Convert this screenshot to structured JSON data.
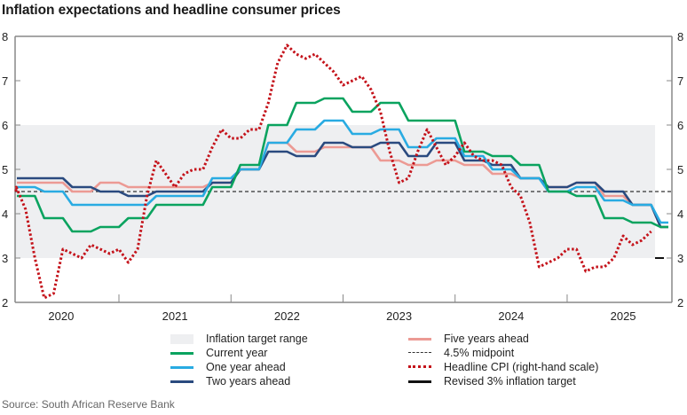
{
  "title": "Inflation expectations and headline consumer prices",
  "source": "Source: South African Reserve Bank",
  "colors": {
    "target_range": "#eeeff1",
    "current_year": "#0aa35f",
    "one_year": "#29abe2",
    "two_years": "#2a4a7f",
    "five_years": "#ec9a94",
    "midpoint": "#333333",
    "cpi": "#c4121a",
    "revised_target": "#111111",
    "axis": "#888888"
  },
  "legend": [
    {
      "key": "target_range",
      "label": "Inflation target range"
    },
    {
      "key": "current_year",
      "label": "Current year"
    },
    {
      "key": "one_year",
      "label": "One year ahead"
    },
    {
      "key": "two_years",
      "label": "Two years ahead"
    },
    {
      "key": "five_years",
      "label": "Five years ahead"
    },
    {
      "key": "midpoint",
      "label": "4.5% midpoint"
    },
    {
      "key": "cpi",
      "label": "Headline CPI (right-hand scale)"
    },
    {
      "key": "revised_target",
      "label": "Revised 3% inflation target"
    }
  ],
  "chart_data": {
    "type": "line",
    "title": "Inflation expectations and headline consumer prices",
    "xlabel": "",
    "ylabel": "",
    "x_ticks": [
      "2020",
      "2021",
      "2022",
      "2023",
      "2024",
      "2025"
    ],
    "y_left": {
      "min": 2,
      "max": 8,
      "ticks": [
        2,
        3,
        4,
        5,
        6,
        7,
        8
      ]
    },
    "y_right": {
      "min": 2,
      "max": 8,
      "ticks": [
        2,
        3,
        4,
        5,
        6,
        7,
        8
      ]
    },
    "target_range": [
      3,
      6
    ],
    "midpoint": 4.5,
    "revised_target": 3,
    "survey_quarters": [
      "2020-Feb",
      "2020-May",
      "2020-Aug",
      "2020-Nov",
      "2021-Feb",
      "2021-May",
      "2021-Aug",
      "2021-Nov",
      "2022-Feb",
      "2022-May",
      "2022-Aug",
      "2022-Nov",
      "2023-Feb",
      "2023-May",
      "2023-Aug",
      "2023-Nov",
      "2024-Feb",
      "2024-May",
      "2024-Aug",
      "2024-Nov",
      "2025-Feb",
      "2025-May",
      "2025-Aug",
      "2025-Nov"
    ],
    "series": [
      {
        "name": "Current year",
        "key": "current_year",
        "axis": "left",
        "values": [
          4.4,
          3.9,
          3.6,
          3.7,
          3.9,
          4.2,
          4.2,
          4.6,
          5.1,
          6.0,
          6.5,
          6.6,
          6.3,
          6.5,
          6.1,
          6.1,
          5.4,
          5.3,
          5.1,
          4.5,
          4.4,
          3.9,
          3.8,
          3.7
        ]
      },
      {
        "name": "One year ahead",
        "key": "one_year",
        "axis": "left",
        "values": [
          4.6,
          4.5,
          4.2,
          4.2,
          4.2,
          4.4,
          4.4,
          4.8,
          5.0,
          5.6,
          5.9,
          6.1,
          5.8,
          5.9,
          5.5,
          5.7,
          5.3,
          5.0,
          4.8,
          4.5,
          4.6,
          4.3,
          4.2,
          3.8
        ]
      },
      {
        "name": "Two years ahead",
        "key": "two_years",
        "axis": "left",
        "values": [
          4.8,
          4.8,
          4.6,
          4.5,
          4.4,
          4.5,
          4.5,
          4.7,
          5.0,
          5.4,
          5.3,
          5.6,
          5.5,
          5.6,
          5.3,
          5.6,
          5.2,
          5.1,
          4.8,
          4.6,
          4.7,
          4.5,
          4.2,
          3.7
        ]
      },
      {
        "name": "Five years ahead",
        "key": "five_years",
        "axis": "left",
        "values": [
          4.7,
          4.7,
          4.5,
          4.7,
          4.6,
          4.6,
          4.6,
          4.7,
          5.0,
          5.6,
          5.4,
          5.5,
          5.5,
          5.2,
          5.1,
          5.2,
          5.1,
          4.9,
          4.8,
          4.6,
          4.7,
          4.4,
          4.2,
          3.7
        ]
      }
    ],
    "cpi": {
      "name": "Headline CPI (right-hand scale)",
      "axis": "right",
      "start_month": "2020-Feb",
      "values": [
        4.6,
        4.1,
        3.0,
        2.1,
        2.2,
        3.2,
        3.1,
        3.0,
        3.3,
        3.2,
        3.1,
        3.2,
        2.9,
        3.2,
        4.4,
        5.2,
        4.9,
        4.6,
        4.9,
        5.0,
        5.0,
        5.5,
        5.9,
        5.7,
        5.7,
        5.9,
        5.9,
        6.5,
        7.4,
        7.8,
        7.6,
        7.5,
        7.6,
        7.4,
        7.2,
        6.9,
        7.0,
        7.1,
        6.8,
        6.3,
        5.4,
        4.7,
        4.8,
        5.4,
        5.9,
        5.5,
        5.1,
        5.3,
        5.6,
        5.3,
        5.2,
        5.2,
        5.1,
        4.6,
        4.4,
        3.8,
        2.8,
        2.9,
        3.0,
        3.2,
        3.2,
        2.7,
        2.8,
        2.8,
        3.0,
        3.5,
        3.3,
        3.4,
        3.6
      ]
    },
    "legend_position": "bottom",
    "grid": false
  }
}
